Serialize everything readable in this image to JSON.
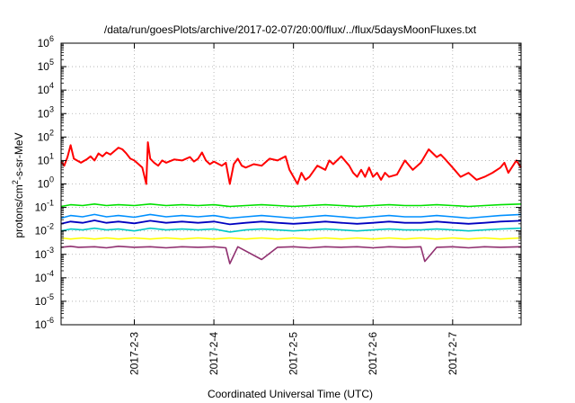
{
  "chart_data": {
    "type": "line",
    "title": "/data/run/goesPlots/archive/2017-02-07/20:00/flux/../flux/5daysMoonFluxes.txt",
    "xlabel": "Coordinated Universal Time (UTC)",
    "ylabel": "protons/cm²-s-sr-MeV",
    "yscale": "log",
    "ylim": [
      1e-06,
      1000000
    ],
    "xlim": [
      2.08,
      7.86
    ],
    "grid": true,
    "x_tick_labels": [
      "2017-2-3",
      "2017-2-4",
      "2017-2-5",
      "2017-2-6",
      "2017-2-7"
    ],
    "x_ticks": [
      3,
      4,
      5,
      6,
      7
    ],
    "y_ticks": [
      {
        "exp": -6,
        "base": "10",
        "power": "-6"
      },
      {
        "exp": -5,
        "base": "10",
        "power": "-5"
      },
      {
        "exp": -4,
        "base": "10",
        "power": "-4"
      },
      {
        "exp": -3,
        "base": "10",
        "power": "-3"
      },
      {
        "exp": -2,
        "base": "10",
        "power": "-2"
      },
      {
        "exp": -1,
        "base": "10",
        "power": "-1"
      },
      {
        "exp": 0,
        "base": "10",
        "power": "0"
      },
      {
        "exp": 1,
        "base": "10",
        "power": "1"
      },
      {
        "exp": 2,
        "base": "10",
        "power": "2"
      },
      {
        "exp": 3,
        "base": "10",
        "power": "3"
      },
      {
        "exp": 4,
        "base": "10",
        "power": "4"
      },
      {
        "exp": 5,
        "base": "10",
        "power": "5"
      },
      {
        "exp": 6,
        "base": "10",
        "power": "6"
      }
    ],
    "series": [
      {
        "color": "#00e000",
        "width": 1.6,
        "x": [
          2.08,
          2.2,
          2.35,
          2.5,
          2.65,
          2.8,
          3.0,
          3.2,
          3.4,
          3.6,
          3.8,
          4.0,
          4.2,
          4.4,
          4.6,
          4.8,
          5.0,
          5.2,
          5.4,
          5.6,
          5.8,
          6.0,
          6.2,
          6.4,
          6.6,
          6.8,
          7.0,
          7.2,
          7.4,
          7.6,
          7.86
        ],
        "y": [
          0.11,
          0.13,
          0.12,
          0.14,
          0.12,
          0.13,
          0.12,
          0.14,
          0.12,
          0.13,
          0.12,
          0.13,
          0.11,
          0.12,
          0.13,
          0.12,
          0.11,
          0.12,
          0.13,
          0.12,
          0.11,
          0.12,
          0.13,
          0.12,
          0.12,
          0.13,
          0.12,
          0.11,
          0.12,
          0.13,
          0.14
        ]
      },
      {
        "color": "#0090ff",
        "width": 1.6,
        "x": [
          2.08,
          2.2,
          2.35,
          2.5,
          2.65,
          2.8,
          3.0,
          3.2,
          3.4,
          3.6,
          3.8,
          4.0,
          4.2,
          4.4,
          4.6,
          4.8,
          5.0,
          5.2,
          5.4,
          5.6,
          5.8,
          6.0,
          6.2,
          6.4,
          6.6,
          6.8,
          7.0,
          7.2,
          7.4,
          7.6,
          7.86
        ],
        "y": [
          0.035,
          0.045,
          0.04,
          0.05,
          0.04,
          0.045,
          0.038,
          0.05,
          0.04,
          0.045,
          0.04,
          0.045,
          0.035,
          0.04,
          0.045,
          0.04,
          0.035,
          0.04,
          0.045,
          0.04,
          0.035,
          0.04,
          0.045,
          0.04,
          0.04,
          0.045,
          0.04,
          0.035,
          0.04,
          0.045,
          0.05
        ]
      },
      {
        "color": "#0000c0",
        "width": 1.8,
        "x": [
          2.08,
          2.2,
          2.35,
          2.5,
          2.65,
          2.8,
          3.0,
          3.2,
          3.4,
          3.6,
          3.8,
          4.0,
          4.2,
          4.4,
          4.6,
          4.8,
          5.0,
          5.2,
          5.4,
          5.6,
          5.8,
          6.0,
          6.2,
          6.4,
          6.6,
          6.8,
          7.0,
          7.2,
          7.4,
          7.6,
          7.86
        ],
        "y": [
          0.02,
          0.025,
          0.022,
          0.028,
          0.022,
          0.025,
          0.021,
          0.027,
          0.022,
          0.025,
          0.022,
          0.025,
          0.019,
          0.022,
          0.025,
          0.022,
          0.02,
          0.022,
          0.025,
          0.022,
          0.02,
          0.022,
          0.025,
          0.022,
          0.022,
          0.025,
          0.022,
          0.02,
          0.022,
          0.025,
          0.027
        ]
      },
      {
        "color": "#00c8c8",
        "width": 1.6,
        "x": [
          2.08,
          2.2,
          2.35,
          2.5,
          2.65,
          2.8,
          3.0,
          3.2,
          3.4,
          3.6,
          3.8,
          4.0,
          4.2,
          4.4,
          4.6,
          4.8,
          5.0,
          5.2,
          5.4,
          5.6,
          5.8,
          6.0,
          6.2,
          6.4,
          6.6,
          6.8,
          7.0,
          7.2,
          7.4,
          7.6,
          7.86
        ],
        "y": [
          0.01,
          0.012,
          0.011,
          0.013,
          0.011,
          0.012,
          0.01,
          0.013,
          0.011,
          0.012,
          0.011,
          0.012,
          0.009,
          0.011,
          0.012,
          0.011,
          0.01,
          0.011,
          0.012,
          0.011,
          0.01,
          0.011,
          0.012,
          0.011,
          0.011,
          0.012,
          0.011,
          0.01,
          0.011,
          0.012,
          0.013
        ]
      },
      {
        "color": "#ffff00",
        "width": 1.6,
        "x": [
          2.08,
          2.2,
          2.35,
          2.5,
          2.65,
          2.8,
          3.0,
          3.2,
          3.4,
          3.6,
          3.8,
          4.0,
          4.2,
          4.4,
          4.6,
          4.8,
          5.0,
          5.2,
          5.4,
          5.6,
          5.8,
          6.0,
          6.2,
          6.4,
          6.6,
          6.8,
          7.0,
          7.2,
          7.4,
          7.6,
          7.86
        ],
        "y": [
          0.005,
          0.0045,
          0.005,
          0.0045,
          0.005,
          0.0045,
          0.005,
          0.0045,
          0.005,
          0.0045,
          0.005,
          0.0045,
          0.005,
          0.0045,
          0.005,
          0.0045,
          0.005,
          0.0045,
          0.005,
          0.0045,
          0.005,
          0.0045,
          0.005,
          0.0045,
          0.005,
          0.0045,
          0.005,
          0.0045,
          0.005,
          0.0045,
          0.005
        ]
      },
      {
        "color": "#903070",
        "width": 1.6,
        "x": [
          2.08,
          2.2,
          2.3,
          2.5,
          2.65,
          2.8,
          3.0,
          3.2,
          3.4,
          3.6,
          3.8,
          4.0,
          4.15,
          4.2,
          4.3,
          4.6,
          4.8,
          5.0,
          5.2,
          5.4,
          5.6,
          5.8,
          6.0,
          6.2,
          6.4,
          6.6,
          6.65,
          6.8,
          7.0,
          7.2,
          7.4,
          7.6,
          7.86
        ],
        "y": [
          0.002,
          0.0022,
          0.002,
          0.0021,
          0.0019,
          0.0022,
          0.002,
          0.0021,
          0.0019,
          0.0021,
          0.002,
          0.0021,
          0.0019,
          0.0004,
          0.0021,
          0.0006,
          0.002,
          0.0021,
          0.0019,
          0.0021,
          0.002,
          0.0021,
          0.0019,
          0.0021,
          0.002,
          0.0021,
          0.0005,
          0.002,
          0.0021,
          0.0019,
          0.0021,
          0.002,
          0.0021
        ]
      },
      {
        "color": "#ff0000",
        "width": 2,
        "x": [
          2.08,
          2.12,
          2.16,
          2.2,
          2.24,
          2.28,
          2.33,
          2.4,
          2.45,
          2.5,
          2.55,
          2.6,
          2.65,
          2.7,
          2.75,
          2.8,
          2.85,
          2.9,
          2.95,
          3.0,
          3.1,
          3.15,
          3.17,
          3.2,
          3.25,
          3.3,
          3.35,
          3.4,
          3.5,
          3.6,
          3.7,
          3.75,
          3.8,
          3.85,
          3.9,
          3.95,
          4.0,
          4.1,
          4.15,
          4.2,
          4.25,
          4.3,
          4.35,
          4.4,
          4.5,
          4.6,
          4.7,
          4.8,
          4.9,
          4.95,
          5.0,
          5.05,
          5.1,
          5.15,
          5.2,
          5.3,
          5.4,
          5.45,
          5.5,
          5.6,
          5.7,
          5.75,
          5.8,
          5.85,
          5.9,
          5.95,
          6.0,
          6.05,
          6.1,
          6.15,
          6.2,
          6.3,
          6.35,
          6.4,
          6.5,
          6.6,
          6.7,
          6.8,
          6.85,
          6.9,
          7.0,
          7.1,
          7.2,
          7.3,
          7.4,
          7.5,
          7.6,
          7.65,
          7.7,
          7.8,
          7.86
        ],
        "y": [
          9,
          6,
          14,
          45,
          12,
          10,
          8,
          11,
          15,
          10,
          20,
          15,
          22,
          18,
          25,
          35,
          30,
          20,
          12,
          10,
          5,
          1,
          60,
          12,
          8,
          6,
          10,
          8,
          11,
          10,
          14,
          9,
          12,
          22,
          10,
          7,
          9,
          6,
          8,
          1,
          7,
          12,
          6,
          5,
          7,
          6,
          12,
          10,
          15,
          4,
          2,
          1,
          3,
          1.5,
          2,
          6,
          4,
          10,
          7,
          15,
          6,
          3,
          2,
          4,
          2,
          5,
          2,
          3,
          1.5,
          3,
          2,
          2.5,
          5,
          10,
          4,
          8,
          30,
          14,
          18,
          12,
          5,
          2,
          3,
          1.5,
          2,
          3,
          5,
          8,
          3,
          10,
          5
        ]
      }
    ]
  }
}
